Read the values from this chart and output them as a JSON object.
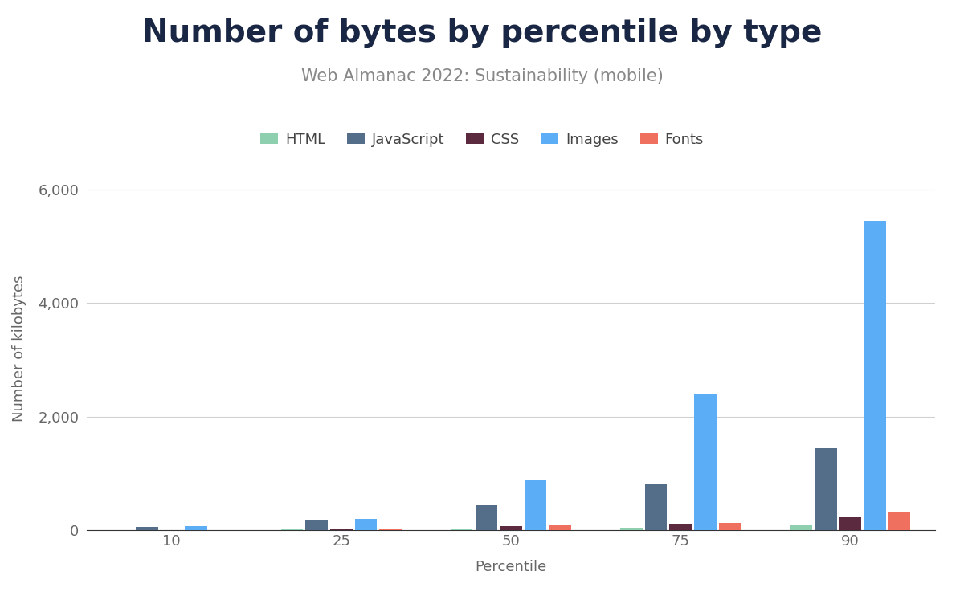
{
  "title": "Number of bytes by percentile by type",
  "subtitle": "Web Almanac 2022: Sustainability (mobile)",
  "xlabel": "Percentile",
  "ylabel": "Number of kilobytes",
  "percentiles": [
    10,
    25,
    50,
    75,
    90
  ],
  "series": {
    "HTML": [
      6,
      14,
      27,
      47,
      100
    ],
    "JavaScript": [
      60,
      170,
      450,
      820,
      1450
    ],
    "CSS": [
      4,
      30,
      75,
      120,
      230
    ],
    "Images": [
      70,
      200,
      900,
      2400,
      5450
    ],
    "Fonts": [
      0,
      20,
      90,
      135,
      330
    ]
  },
  "colors": {
    "HTML": "#8ecfb0",
    "JavaScript": "#546e8a",
    "CSS": "#5c2a3e",
    "Images": "#5baef5",
    "Fonts": "#f07060"
  },
  "background_color": "#ffffff",
  "ylim": [
    0,
    6400
  ],
  "yticks": [
    0,
    2000,
    4000,
    6000
  ],
  "title_fontsize": 28,
  "subtitle_fontsize": 15,
  "label_fontsize": 13,
  "tick_fontsize": 13,
  "legend_fontsize": 13
}
